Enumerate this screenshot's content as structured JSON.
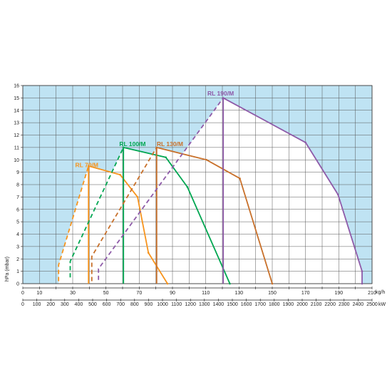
{
  "chart_data": {
    "type": "line",
    "ylabel": "hPa (mbar)",
    "x_unit": "kg/h",
    "x2_unit": "kW",
    "xlim": [
      0,
      210
    ],
    "ylim": [
      0,
      16
    ],
    "yticks": [
      0,
      1,
      2,
      3,
      4,
      5,
      6,
      7,
      8,
      9,
      10,
      11,
      12,
      13,
      14,
      15,
      16
    ],
    "xticks": [
      0,
      10,
      30,
      50,
      70,
      90,
      110,
      130,
      150,
      170,
      190,
      210
    ],
    "x2ticks": [
      0,
      100,
      200,
      300,
      400,
      500,
      600,
      700,
      800,
      900,
      1000,
      1100,
      1200,
      1300,
      1400,
      1500,
      1600,
      1700,
      1800,
      1900,
      2000,
      2100,
      2200,
      2300,
      2400,
      2500
    ],
    "x2_per_x": 11.905,
    "grid": true,
    "colors": {
      "background": "#bfe3f3",
      "grid": "#555555",
      "rl70": "#f7941d",
      "rl100": "#00a651",
      "rl130": "#c8702a",
      "rl190": "#8e5aa8"
    },
    "series": [
      {
        "name": "RL 70/M",
        "key": "rl70",
        "dashed": [
          [
            21.5,
            0.2
          ],
          [
            21.5,
            1.5
          ],
          [
            39.5,
            9.5
          ]
        ],
        "envelope": [
          [
            39.5,
            9.5
          ],
          [
            58.5,
            8.8
          ],
          [
            69,
            7
          ],
          [
            75.5,
            2.5
          ],
          [
            87,
            0
          ]
        ],
        "vertical": [
          [
            39.5,
            0
          ],
          [
            39.5,
            9.5
          ]
        ]
      },
      {
        "name": "RL 100/M",
        "key": "rl100",
        "dashed": [
          [
            28.5,
            0.5
          ],
          [
            28.5,
            1.8
          ],
          [
            60.5,
            11
          ]
        ],
        "envelope": [
          [
            60.5,
            11
          ],
          [
            86,
            10.2
          ],
          [
            99,
            7.8
          ],
          [
            124.5,
            0
          ]
        ],
        "vertical": [
          [
            60.5,
            0
          ],
          [
            60.5,
            11
          ]
        ]
      },
      {
        "name": "RL 130/M",
        "key": "rl130",
        "dashed": [
          [
            41.5,
            0.2
          ],
          [
            41.5,
            2.2
          ],
          [
            80.5,
            11
          ]
        ],
        "envelope": [
          [
            80.5,
            11
          ],
          [
            110.5,
            10
          ],
          [
            130.5,
            8.5
          ],
          [
            150,
            0
          ]
        ],
        "vertical": [
          [
            80.5,
            0
          ],
          [
            80.5,
            11
          ]
        ]
      },
      {
        "name": "RL 190/M",
        "key": "rl190",
        "dashed": [
          [
            45.5,
            0.3
          ],
          [
            45.5,
            1.2
          ],
          [
            120.5,
            15
          ]
        ],
        "envelope": [
          [
            120.5,
            15
          ],
          [
            170,
            11.4
          ],
          [
            189.5,
            7.2
          ],
          [
            204,
            1
          ],
          [
            204,
            0
          ]
        ],
        "vertical": [
          [
            120.5,
            0
          ],
          [
            120.5,
            15
          ]
        ]
      }
    ],
    "labels": [
      {
        "series": "rl70",
        "text": "RL 70/M",
        "at": [
          31.5,
          9.4
        ]
      },
      {
        "series": "rl100",
        "text": "RL 100/M",
        "at": [
          58,
          11.1
        ]
      },
      {
        "series": "rl130",
        "text": "RL 130/M",
        "at": [
          80.5,
          11.1
        ]
      },
      {
        "series": "rl190",
        "text": "RL 190/M",
        "at": [
          111,
          15.2
        ]
      }
    ]
  }
}
